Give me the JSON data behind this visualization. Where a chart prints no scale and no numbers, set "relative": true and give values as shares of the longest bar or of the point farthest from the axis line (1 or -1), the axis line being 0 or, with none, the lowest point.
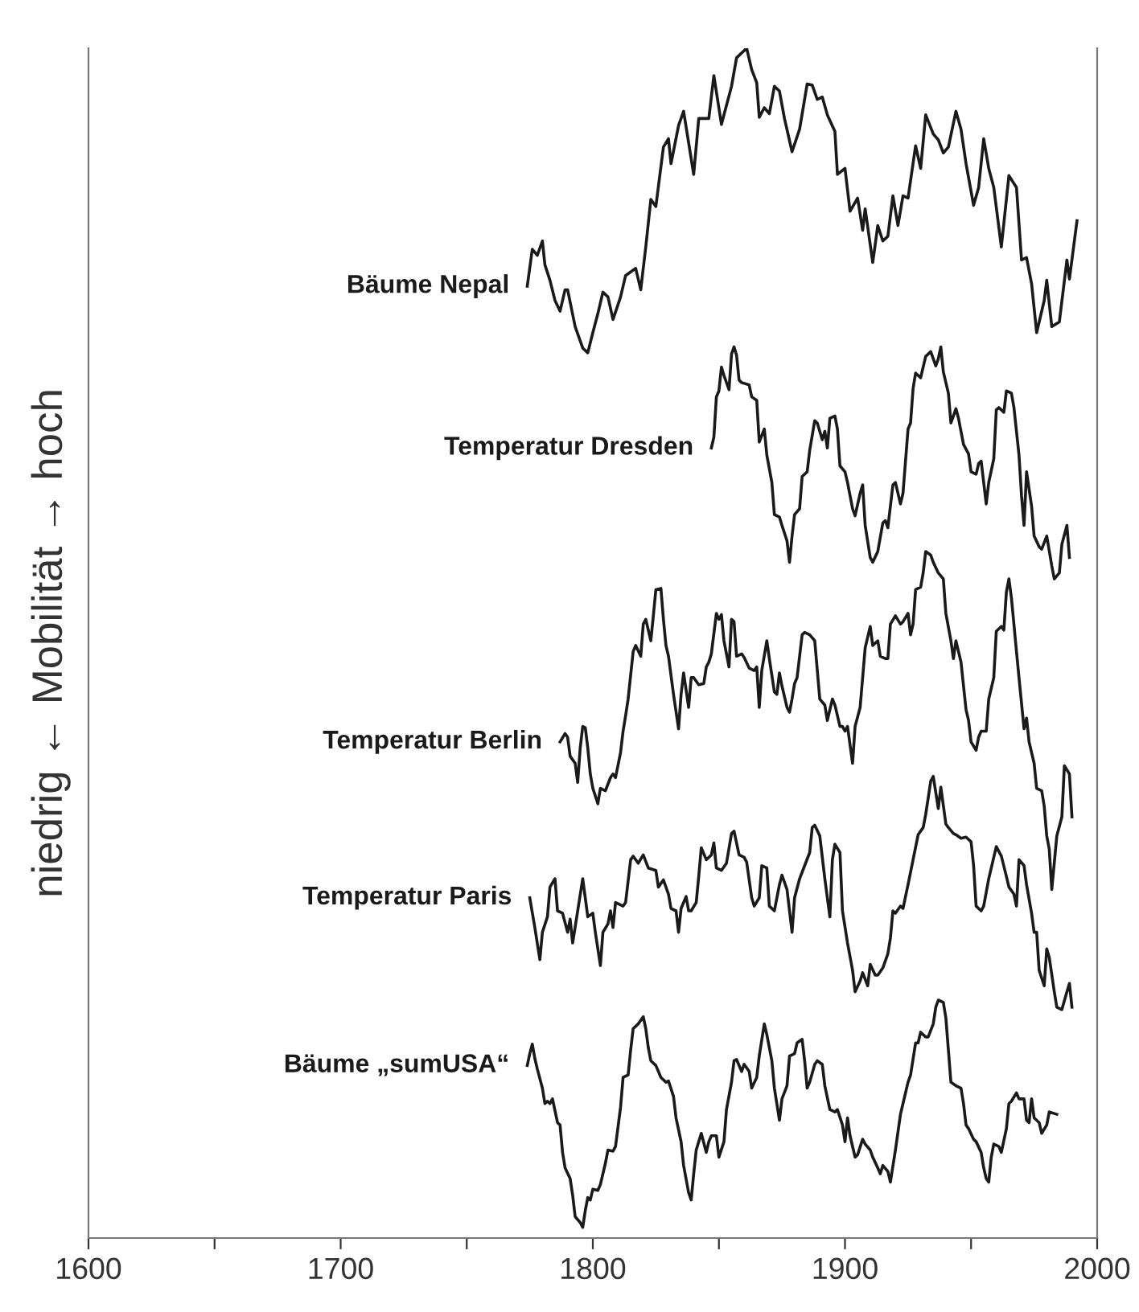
{
  "chart_data": {
    "type": "line",
    "relative": true,
    "ylabel": "niedrig ← Mobilität → hoch",
    "xlim": [
      1600,
      2000
    ],
    "xticks": [
      1600,
      {
        "value": 1650,
        "label": null
      },
      1700,
      {
        "value": 1750,
        "label": null
      },
      1800,
      {
        "value": 1850,
        "label": null
      },
      1900,
      {
        "value": 1950,
        "label": null
      },
      2000
    ],
    "grid": false,
    "legend": false,
    "marker": "none",
    "line_style": "solid",
    "series": [
      {
        "name": "Bäume Nepal",
        "color": "#1a1a1a",
        "x": [
          1774,
          1776,
          1778,
          1780,
          1781,
          1783,
          1785,
          1787,
          1789,
          1790,
          1793,
          1796,
          1798,
          1800,
          1802,
          1804,
          1806,
          1808,
          1811,
          1813,
          1817,
          1819,
          1821,
          1823,
          1825,
          1828,
          1830,
          1831,
          1834,
          1836,
          1840,
          1842,
          1846,
          1848,
          1851,
          1855,
          1857,
          1861,
          1863,
          1865,
          1866,
          1868,
          1870,
          1872,
          1874,
          1876,
          1879,
          1882,
          1885,
          1887,
          1889,
          1891,
          1893,
          1896,
          1897,
          1900,
          1902,
          1905,
          1907,
          1908,
          1911,
          1913,
          1915,
          1917,
          1919,
          1921,
          1923,
          1925,
          1928,
          1930,
          1932,
          1935,
          1937,
          1939,
          1941,
          1944,
          1946,
          1948,
          1951,
          1953,
          1955,
          1957,
          1959,
          1962,
          1965,
          1968,
          1970,
          1972,
          1974,
          1976,
          1979,
          1980,
          1982,
          1985,
          1988,
          1989,
          1992
        ],
        "values": [
          0.8,
          0.831,
          0.826,
          0.838,
          0.818,
          0.805,
          0.788,
          0.779,
          0.797,
          0.797,
          0.766,
          0.748,
          0.744,
          0.761,
          0.777,
          0.795,
          0.791,
          0.772,
          0.791,
          0.809,
          0.815,
          0.797,
          0.833,
          0.873,
          0.867,
          0.917,
          0.924,
          0.903,
          0.935,
          0.947,
          0.894,
          0.941,
          0.941,
          0.977,
          0.936,
          0.968,
          0.992,
          1,
          0.982,
          0.971,
          0.942,
          0.95,
          0.945,
          0.968,
          0.964,
          0.941,
          0.913,
          0.932,
          0.97,
          0.969,
          0.957,
          0.959,
          0.944,
          0.93,
          0.894,
          0.899,
          0.863,
          0.874,
          0.847,
          0.865,
          0.82,
          0.851,
          0.838,
          0.842,
          0.876,
          0.851,
          0.876,
          0.874,
          0.918,
          0.899,
          0.944,
          0.928,
          0.923,
          0.912,
          0.917,
          0.947,
          0.932,
          0.903,
          0.868,
          0.883,
          0.924,
          0.899,
          0.883,
          0.833,
          0.893,
          0.883,
          0.822,
          0.824,
          0.802,
          0.761,
          0.788,
          0.805,
          0.766,
          0.77,
          0.822,
          0.806,
          0.855
        ]
      },
      {
        "name": "Temperatur Dresden",
        "color": "#1a1a1a",
        "x": [
          1847,
          1848,
          1849,
          1850,
          1851,
          1852,
          1854,
          1855,
          1856,
          1857,
          1858,
          1859,
          1862,
          1863,
          1865,
          1866,
          1868,
          1869,
          1871,
          1872,
          1874,
          1875,
          1877,
          1878,
          1879,
          1880,
          1882,
          1883,
          1885,
          1886,
          1888,
          1889,
          1891,
          1892,
          1893,
          1894,
          1896,
          1897,
          1898,
          1900,
          1901,
          1903,
          1904,
          1906,
          1907,
          1908,
          1910,
          1911,
          1913,
          1915,
          1916,
          1917,
          1919,
          1920,
          1922,
          1923,
          1925,
          1926,
          1927,
          1928,
          1930,
          1932,
          1934,
          1936,
          1937,
          1938,
          1939,
          1941,
          1942,
          1944,
          1945,
          1947,
          1949,
          1950,
          1952,
          1953,
          1954,
          1956,
          1957,
          1959,
          1960,
          1961,
          1963,
          1964,
          1966,
          1967,
          1969,
          1970,
          1971,
          1972,
          1974,
          1975,
          1977,
          1978,
          1980,
          1982,
          1983,
          1985,
          1986,
          1988,
          1989
        ],
        "values": [
          0.664,
          0.673,
          0.707,
          0.712,
          0.732,
          0.725,
          0.713,
          0.743,
          0.749,
          0.742,
          0.721,
          0.719,
          0.717,
          0.707,
          0.704,
          0.669,
          0.68,
          0.658,
          0.635,
          0.608,
          0.606,
          0.599,
          0.586,
          0.568,
          0.59,
          0.608,
          0.613,
          0.64,
          0.644,
          0.662,
          0.687,
          0.685,
          0.671,
          0.678,
          0.664,
          0.689,
          0.691,
          0.68,
          0.649,
          0.644,
          0.635,
          0.613,
          0.607,
          0.626,
          0.633,
          0.599,
          0.572,
          0.568,
          0.577,
          0.601,
          0.603,
          0.597,
          0.633,
          0.635,
          0.617,
          0.626,
          0.68,
          0.685,
          0.714,
          0.727,
          0.723,
          0.741,
          0.745,
          0.733,
          0.739,
          0.749,
          0.728,
          0.71,
          0.685,
          0.697,
          0.689,
          0.667,
          0.659,
          0.644,
          0.642,
          0.651,
          0.653,
          0.617,
          0.635,
          0.655,
          0.696,
          0.698,
          0.694,
          0.712,
          0.71,
          0.698,
          0.658,
          0.624,
          0.599,
          0.644,
          0.615,
          0.59,
          0.581,
          0.579,
          0.59,
          0.565,
          0.554,
          0.559,
          0.583,
          0.599,
          0.572
        ]
      },
      {
        "name": "Temperatur Berlin",
        "color": "#1a1a1a",
        "x": [
          1787,
          1789,
          1790,
          1791,
          1793,
          1794,
          1795,
          1796,
          1797,
          1798,
          1799,
          1800,
          1802,
          1803,
          1805,
          1807,
          1808,
          1809,
          1811,
          1812,
          1813,
          1814,
          1816,
          1817,
          1819,
          1820,
          1821,
          1823,
          1824,
          1825,
          1827,
          1828,
          1829,
          1830,
          1832,
          1834,
          1835,
          1836,
          1838,
          1839,
          1840,
          1842,
          1844,
          1845,
          1846,
          1847,
          1849,
          1850,
          1851,
          1852,
          1854,
          1855,
          1856,
          1857,
          1859,
          1860,
          1862,
          1864,
          1865,
          1866,
          1867,
          1869,
          1870,
          1872,
          1873,
          1874,
          1875,
          1877,
          1878,
          1879,
          1880,
          1881,
          1883,
          1884,
          1886,
          1888,
          1890,
          1892,
          1893,
          1895,
          1896,
          1898,
          1899,
          1900,
          1901,
          1903,
          1904,
          1906,
          1907,
          1908,
          1910,
          1911,
          1913,
          1914,
          1916,
          1917,
          1918,
          1920,
          1922,
          1923,
          1925,
          1926,
          1927,
          1928,
          1930,
          1931,
          1932,
          1934,
          1935,
          1937,
          1939,
          1940,
          1942,
          1943,
          1944,
          1946,
          1948,
          1949,
          1950,
          1952,
          1953,
          1954,
          1956,
          1957,
          1959,
          1960,
          1962,
          1963,
          1964,
          1965,
          1966,
          1968,
          1969,
          1971,
          1972,
          1973,
          1975,
          1976,
          1978,
          1979,
          1980,
          1981,
          1982,
          1984,
          1986,
          1987,
          1989,
          1990
        ],
        "values": [
          0.417,
          0.424,
          0.421,
          0.405,
          0.399,
          0.383,
          0.412,
          0.43,
          0.429,
          0.412,
          0.39,
          0.378,
          0.365,
          0.378,
          0.376,
          0.387,
          0.39,
          0.387,
          0.408,
          0.426,
          0.439,
          0.453,
          0.493,
          0.498,
          0.489,
          0.516,
          0.52,
          0.502,
          0.523,
          0.545,
          0.546,
          0.52,
          0.498,
          0.489,
          0.457,
          0.428,
          0.457,
          0.475,
          0.446,
          0.471,
          0.471,
          0.465,
          0.466,
          0.48,
          0.484,
          0.491,
          0.525,
          0.52,
          0.524,
          0.502,
          0.48,
          0.52,
          0.518,
          0.489,
          0.491,
          0.488,
          0.479,
          0.477,
          0.48,
          0.446,
          0.477,
          0.502,
          0.487,
          0.459,
          0.457,
          0.475,
          0.464,
          0.446,
          0.442,
          0.453,
          0.466,
          0.471,
          0.507,
          0.509,
          0.507,
          0.502,
          0.453,
          0.448,
          0.435,
          0.453,
          0.448,
          0.43,
          0.43,
          0.426,
          0.43,
          0.399,
          0.43,
          0.446,
          0.471,
          0.496,
          0.514,
          0.498,
          0.502,
          0.489,
          0.487,
          0.487,
          0.516,
          0.523,
          0.516,
          0.518,
          0.525,
          0.507,
          0.516,
          0.545,
          0.547,
          0.559,
          0.577,
          0.574,
          0.568,
          0.559,
          0.554,
          0.525,
          0.502,
          0.487,
          0.502,
          0.484,
          0.444,
          0.435,
          0.417,
          0.41,
          0.421,
          0.426,
          0.426,
          0.453,
          0.471,
          0.51,
          0.514,
          0.511,
          0.543,
          0.554,
          0.538,
          0.493,
          0.471,
          0.428,
          0.437,
          0.417,
          0.399,
          0.378,
          0.376,
          0.363,
          0.338,
          0.327,
          0.293,
          0.338,
          0.354,
          0.397,
          0.39,
          0.354
        ]
      },
      {
        "name": "Temperatur Paris",
        "color": "#1a1a1a",
        "x": [
          1775,
          1777,
          1779,
          1780,
          1782,
          1783,
          1785,
          1786,
          1788,
          1790,
          1791,
          1792,
          1794,
          1796,
          1797,
          1798,
          1800,
          1801,
          1803,
          1804,
          1806,
          1807,
          1808,
          1809,
          1812,
          1813,
          1815,
          1816,
          1818,
          1820,
          1822,
          1825,
          1826,
          1828,
          1830,
          1831,
          1833,
          1834,
          1835,
          1837,
          1838,
          1839,
          1841,
          1842,
          1843,
          1845,
          1847,
          1848,
          1849,
          1851,
          1853,
          1855,
          1856,
          1858,
          1860,
          1861,
          1863,
          1864,
          1866,
          1867,
          1869,
          1870,
          1872,
          1874,
          1875,
          1877,
          1879,
          1880,
          1882,
          1884,
          1886,
          1887,
          1888,
          1890,
          1892,
          1894,
          1895,
          1896,
          1898,
          1899,
          1901,
          1903,
          1904,
          1906,
          1907,
          1909,
          1910,
          1912,
          1913,
          1915,
          1917,
          1918,
          1919,
          1920,
          1922,
          1923,
          1925,
          1927,
          1929,
          1931,
          1932,
          1934,
          1935,
          1937,
          1938,
          1940,
          1941,
          1943,
          1944,
          1946,
          1948,
          1950,
          1951,
          1952,
          1954,
          1955,
          1957,
          1959,
          1960,
          1962,
          1964,
          1965,
          1967,
          1968,
          1969,
          1971,
          1972,
          1974,
          1975,
          1976,
          1977,
          1979,
          1980,
          1981,
          1983,
          1984,
          1986,
          1988,
          1989,
          1990
        ],
        "values": [
          0.286,
          0.261,
          0.234,
          0.257,
          0.27,
          0.295,
          0.302,
          0.275,
          0.273,
          0.257,
          0.268,
          0.248,
          0.275,
          0.302,
          0.286,
          0.27,
          0.273,
          0.257,
          0.229,
          0.257,
          0.264,
          0.275,
          0.261,
          0.282,
          0.279,
          0.282,
          0.318,
          0.321,
          0.315,
          0.322,
          0.311,
          0.309,
          0.295,
          0.301,
          0.289,
          0.277,
          0.275,
          0.257,
          0.277,
          0.287,
          0.275,
          0.275,
          0.282,
          0.304,
          0.328,
          0.318,
          0.322,
          0.332,
          0.311,
          0.309,
          0.315,
          0.34,
          0.342,
          0.322,
          0.32,
          0.316,
          0.286,
          0.279,
          0.286,
          0.313,
          0.311,
          0.279,
          0.275,
          0.297,
          0.305,
          0.293,
          0.257,
          0.286,
          0.302,
          0.313,
          0.324,
          0.345,
          0.347,
          0.338,
          0.302,
          0.27,
          0.318,
          0.331,
          0.324,
          0.275,
          0.248,
          0.225,
          0.207,
          0.216,
          0.223,
          0.212,
          0.23,
          0.221,
          0.221,
          0.227,
          0.239,
          0.252,
          0.275,
          0.273,
          0.279,
          0.277,
          0.297,
          0.318,
          0.339,
          0.345,
          0.356,
          0.384,
          0.388,
          0.361,
          0.379,
          0.348,
          0.345,
          0.34,
          0.339,
          0.336,
          0.337,
          0.333,
          0.313,
          0.279,
          0.275,
          0.279,
          0.302,
          0.32,
          0.329,
          0.321,
          0.304,
          0.295,
          0.289,
          0.279,
          0.318,
          0.313,
          0.297,
          0.273,
          0.257,
          0.257,
          0.225,
          0.212,
          0.243,
          0.236,
          0.207,
          0.194,
          0.192,
          0.207,
          0.214,
          0.194
        ]
      },
      {
        "name": "Bäume „sumUSA“",
        "color": "#1a1a1a",
        "x": [
          1774,
          1775,
          1776,
          1777,
          1778,
          1780,
          1781,
          1782,
          1783,
          1784,
          1786,
          1787,
          1788,
          1789,
          1791,
          1792,
          1793,
          1795,
          1796,
          1797,
          1798,
          1799,
          1800,
          1802,
          1803,
          1805,
          1806,
          1808,
          1809,
          1811,
          1812,
          1814,
          1815,
          1816,
          1818,
          1820,
          1821,
          1822,
          1823,
          1825,
          1827,
          1829,
          1830,
          1832,
          1833,
          1835,
          1836,
          1838,
          1839,
          1840,
          1841,
          1843,
          1845,
          1846,
          1847,
          1849,
          1850,
          1852,
          1853,
          1855,
          1856,
          1857,
          1859,
          1860,
          1862,
          1863,
          1865,
          1866,
          1868,
          1869,
          1871,
          1872,
          1874,
          1875,
          1877,
          1878,
          1880,
          1881,
          1883,
          1884,
          1885,
          1886,
          1888,
          1889,
          1891,
          1892,
          1894,
          1896,
          1897,
          1899,
          1900,
          1901,
          1902,
          1904,
          1905,
          1907,
          1908,
          1910,
          1911,
          1913,
          1914,
          1915,
          1917,
          1918,
          1920,
          1922,
          1923,
          1925,
          1926,
          1928,
          1929,
          1930,
          1932,
          1933,
          1935,
          1936,
          1937,
          1939,
          1940,
          1941,
          1942,
          1944,
          1946,
          1947,
          1948,
          1949,
          1951,
          1952,
          1954,
          1955,
          1956,
          1957,
          1958,
          1959,
          1961,
          1962,
          1964,
          1965,
          1966,
          1968,
          1969,
          1971,
          1972,
          1973,
          1974,
          1975,
          1977,
          1978,
          1980,
          1981,
          1984
        ],
        "values": [
          0.145,
          0.155,
          0.163,
          0.151,
          0.142,
          0.126,
          0.113,
          0.115,
          0.113,
          0.117,
          0.097,
          0.095,
          0.072,
          0.059,
          0.05,
          0.036,
          0.018,
          0.013,
          0.009,
          0.023,
          0.034,
          0.032,
          0.041,
          0.04,
          0.045,
          0.063,
          0.074,
          0.073,
          0.077,
          0.11,
          0.135,
          0.137,
          0.158,
          0.176,
          0.18,
          0.186,
          0.176,
          0.16,
          0.149,
          0.145,
          0.135,
          0.131,
          0.132,
          0.119,
          0.101,
          0.081,
          0.061,
          0.038,
          0.032,
          0.054,
          0.074,
          0.088,
          0.072,
          0.081,
          0.086,
          0.086,
          0.068,
          0.081,
          0.108,
          0.131,
          0.149,
          0.15,
          0.14,
          0.146,
          0.14,
          0.126,
          0.135,
          0.153,
          0.18,
          0.171,
          0.149,
          0.126,
          0.099,
          0.117,
          0.128,
          0.153,
          0.155,
          0.164,
          0.167,
          0.149,
          0.126,
          0.131,
          0.146,
          0.149,
          0.146,
          0.128,
          0.108,
          0.106,
          0.108,
          0.095,
          0.081,
          0.101,
          0.086,
          0.068,
          0.07,
          0.083,
          0.079,
          0.074,
          0.068,
          0.059,
          0.054,
          0.061,
          0.056,
          0.047,
          0.074,
          0.104,
          0.113,
          0.131,
          0.137,
          0.164,
          0.164,
          0.173,
          0.169,
          0.169,
          0.18,
          0.194,
          0.2,
          0.198,
          0.185,
          0.158,
          0.131,
          0.128,
          0.126,
          0.113,
          0.095,
          0.092,
          0.083,
          0.081,
          0.072,
          0.059,
          0.05,
          0.047,
          0.068,
          0.079,
          0.077,
          0.072,
          0.092,
          0.113,
          0.115,
          0.122,
          0.117,
          0.117,
          0.099,
          0.097,
          0.117,
          0.101,
          0.097,
          0.088,
          0.095,
          0.106,
          0.104
        ]
      }
    ]
  }
}
